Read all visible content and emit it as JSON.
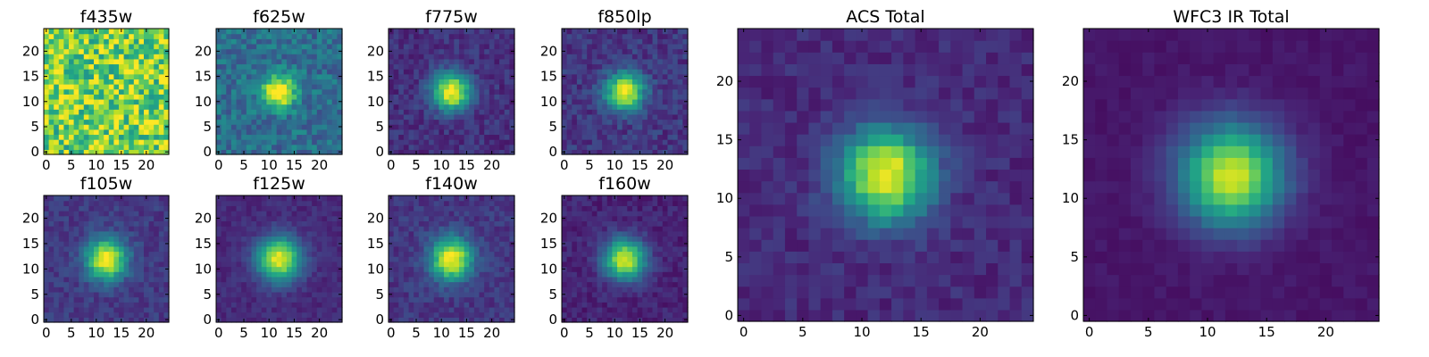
{
  "chart_data": [
    {
      "type": "heatmap",
      "title": "f435w",
      "grid_size": 25,
      "xlim": [
        0,
        24
      ],
      "ylim": [
        0,
        24
      ],
      "xticks": [
        0,
        5,
        10,
        15,
        20
      ],
      "yticks": [
        0,
        5,
        10,
        15,
        20
      ],
      "source": {
        "peak": 0.0,
        "background": 0.8,
        "noise": 0.28,
        "center": [
          12,
          12
        ],
        "sigma": 3.0
      }
    },
    {
      "type": "heatmap",
      "title": "f625w",
      "grid_size": 25,
      "xlim": [
        0,
        24
      ],
      "ylim": [
        0,
        24
      ],
      "xticks": [
        0,
        5,
        10,
        15,
        20
      ],
      "yticks": [
        0,
        5,
        10,
        15,
        20
      ],
      "source": {
        "peak": 0.75,
        "background": 0.36,
        "noise": 0.13,
        "center": [
          12,
          12
        ],
        "sigma": 2.2
      }
    },
    {
      "type": "heatmap",
      "title": "f775w",
      "grid_size": 25,
      "xlim": [
        0,
        24
      ],
      "ylim": [
        0,
        24
      ],
      "xticks": [
        0,
        5,
        10,
        15,
        20
      ],
      "yticks": [
        0,
        5,
        10,
        15,
        20
      ],
      "source": {
        "peak": 0.88,
        "background": 0.14,
        "noise": 0.08,
        "center": [
          12,
          12
        ],
        "sigma": 2.6
      }
    },
    {
      "type": "heatmap",
      "title": "f850lp",
      "grid_size": 25,
      "xlim": [
        0,
        24
      ],
      "ylim": [
        0,
        24
      ],
      "xticks": [
        0,
        5,
        10,
        15,
        20
      ],
      "yticks": [
        0,
        5,
        10,
        15,
        20
      ],
      "source": {
        "peak": 0.84,
        "background": 0.16,
        "noise": 0.09,
        "center": [
          12,
          12
        ],
        "sigma": 2.6
      }
    },
    {
      "type": "heatmap",
      "title": "f105w",
      "grid_size": 25,
      "xlim": [
        0,
        24
      ],
      "ylim": [
        0,
        24
      ],
      "xticks": [
        0,
        5,
        10,
        15,
        20
      ],
      "yticks": [
        0,
        5,
        10,
        15,
        20
      ],
      "source": {
        "peak": 0.86,
        "background": 0.17,
        "noise": 0.07,
        "center": [
          12,
          12
        ],
        "sigma": 2.8
      }
    },
    {
      "type": "heatmap",
      "title": "f125w",
      "grid_size": 25,
      "xlim": [
        0,
        24
      ],
      "ylim": [
        0,
        24
      ],
      "xticks": [
        0,
        5,
        10,
        15,
        20
      ],
      "yticks": [
        0,
        5,
        10,
        15,
        20
      ],
      "source": {
        "peak": 0.86,
        "background": 0.12,
        "noise": 0.05,
        "center": [
          12,
          12
        ],
        "sigma": 3.0
      }
    },
    {
      "type": "heatmap",
      "title": "f140w",
      "grid_size": 25,
      "xlim": [
        0,
        24
      ],
      "ylim": [
        0,
        24
      ],
      "xticks": [
        0,
        5,
        10,
        15,
        20
      ],
      "yticks": [
        0,
        5,
        10,
        15,
        20
      ],
      "source": {
        "peak": 0.86,
        "background": 0.16,
        "noise": 0.07,
        "center": [
          12,
          12
        ],
        "sigma": 2.9
      }
    },
    {
      "type": "heatmap",
      "title": "f160w",
      "grid_size": 25,
      "xlim": [
        0,
        24
      ],
      "ylim": [
        0,
        24
      ],
      "xticks": [
        0,
        5,
        10,
        15,
        20
      ],
      "yticks": [
        0,
        5,
        10,
        15,
        20
      ],
      "source": {
        "peak": 0.86,
        "background": 0.1,
        "noise": 0.06,
        "center": [
          12,
          12
        ],
        "sigma": 2.8
      }
    },
    {
      "type": "heatmap",
      "title": "ACS Total",
      "grid_size": 25,
      "xlim": [
        0,
        24
      ],
      "ylim": [
        0,
        24
      ],
      "xticks": [
        0,
        5,
        10,
        15,
        20
      ],
      "yticks": [
        0,
        5,
        10,
        15,
        20
      ],
      "source": {
        "peak": 0.88,
        "background": 0.12,
        "noise": 0.06,
        "center": [
          12,
          12
        ],
        "sigma": 2.7
      }
    },
    {
      "type": "heatmap",
      "title": "WFC3 IR Total",
      "grid_size": 25,
      "xlim": [
        0,
        24
      ],
      "ylim": [
        0,
        24
      ],
      "xticks": [
        0,
        5,
        10,
        15,
        20
      ],
      "yticks": [
        0,
        5,
        10,
        15,
        20
      ],
      "source": {
        "peak": 0.88,
        "background": 0.06,
        "noise": 0.025,
        "center": [
          12,
          12
        ],
        "sigma": 3.0
      }
    }
  ],
  "colormap": "viridis",
  "colors": {
    "axis": "#000000",
    "background": "#ffffff"
  }
}
